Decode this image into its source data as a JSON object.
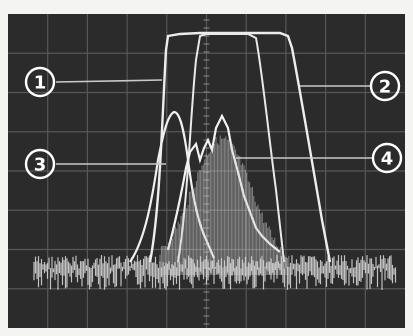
{
  "markers": [
    {
      "id": "1",
      "label": "1"
    },
    {
      "id": "2",
      "label": "2"
    },
    {
      "id": "3",
      "label": "3"
    },
    {
      "id": "4",
      "label": "4"
    }
  ],
  "colors": {
    "background": "#f4f4f2",
    "screen": "#2a2b2a",
    "grid": "#565956",
    "trace": "#ededed",
    "leader": "#c9c9c9"
  }
}
